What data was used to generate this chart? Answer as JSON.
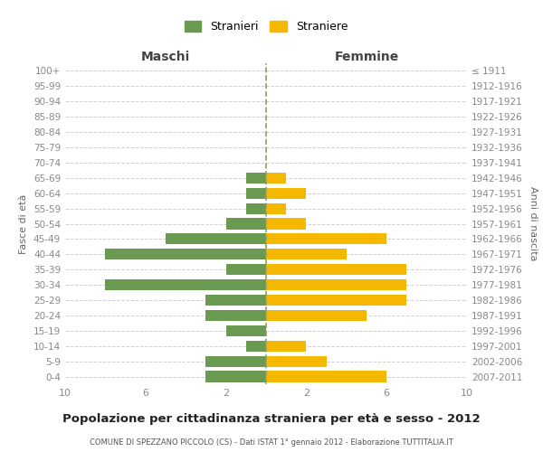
{
  "age_groups": [
    "100+",
    "95-99",
    "90-94",
    "85-89",
    "80-84",
    "75-79",
    "70-74",
    "65-69",
    "60-64",
    "55-59",
    "50-54",
    "45-49",
    "40-44",
    "35-39",
    "30-34",
    "25-29",
    "20-24",
    "15-19",
    "10-14",
    "5-9",
    "0-4"
  ],
  "birth_years": [
    "≤ 1911",
    "1912-1916",
    "1917-1921",
    "1922-1926",
    "1927-1931",
    "1932-1936",
    "1937-1941",
    "1942-1946",
    "1947-1951",
    "1952-1956",
    "1957-1961",
    "1962-1966",
    "1967-1971",
    "1972-1976",
    "1977-1981",
    "1982-1986",
    "1987-1991",
    "1992-1996",
    "1997-2001",
    "2002-2006",
    "2007-2011"
  ],
  "males": [
    0,
    0,
    0,
    0,
    0,
    0,
    0,
    1,
    1,
    1,
    2,
    5,
    8,
    2,
    8,
    3,
    3,
    2,
    1,
    3,
    3
  ],
  "females": [
    0,
    0,
    0,
    0,
    0,
    0,
    0,
    1,
    2,
    1,
    2,
    6,
    4,
    7,
    7,
    7,
    5,
    0,
    2,
    3,
    6
  ],
  "male_color": "#6a9a52",
  "female_color": "#f5b800",
  "background_color": "#ffffff",
  "grid_color": "#d0d0d0",
  "title": "Popolazione per cittadinanza straniera per età e sesso - 2012",
  "subtitle": "COMUNE DI SPEZZANO PICCOLO (CS) - Dati ISTAT 1° gennaio 2012 - Elaborazione TUTTITALIA.IT",
  "left_header": "Maschi",
  "right_header": "Femmine",
  "left_axis_label": "Fasce di età",
  "right_axis_label": "Anni di nascita",
  "legend_male": "Stranieri",
  "legend_female": "Straniere",
  "xlim": 10,
  "dashed_line_color": "#999966"
}
